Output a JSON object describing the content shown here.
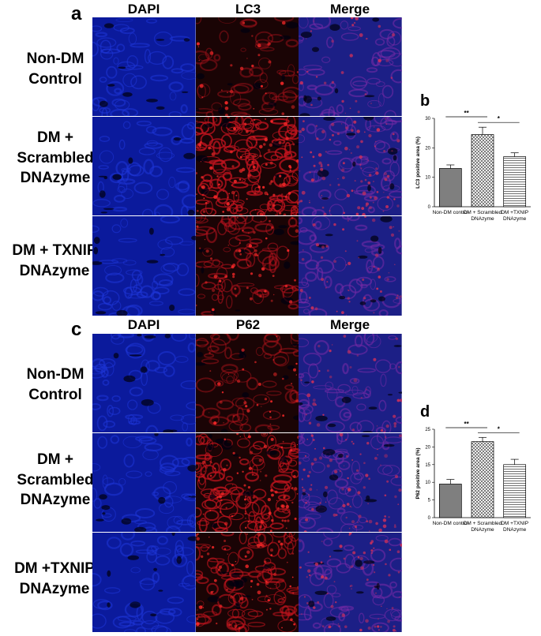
{
  "figure": {
    "panel_a": {
      "letter": "a",
      "columns": [
        "DAPI",
        "LC3",
        "Merge"
      ],
      "rows": [
        {
          "label_lines": [
            "Non-DM",
            "Control"
          ]
        },
        {
          "label_lines": [
            "DM +",
            "Scrambled",
            "DNAzyme"
          ]
        },
        {
          "label_lines": [
            "DM + TXNIP",
            "DNAzyme"
          ]
        }
      ]
    },
    "panel_c": {
      "letter": "c",
      "columns": [
        "DAPI",
        "P62",
        "Merge"
      ],
      "rows": [
        {
          "label_lines": [
            "Non-DM",
            "Control"
          ]
        },
        {
          "label_lines": [
            "DM  +",
            "Scrambled",
            "DNAzyme"
          ]
        },
        {
          "label_lines": [
            "DM +TXNIP",
            "DNAzyme"
          ]
        }
      ]
    }
  },
  "chart_data": [
    {
      "panel": "b",
      "type": "bar",
      "categories": [
        "Non-DM control",
        "DM + Scrambled\nDNAzyme",
        "DM +TXNIP\nDNAzyme"
      ],
      "values": [
        13,
        24.5,
        17
      ],
      "errors": [
        1.2,
        2.5,
        1.3
      ],
      "ylabel": "LC3 positive area (%)",
      "ylim": [
        0,
        30
      ],
      "yticks": [
        0,
        10,
        20,
        30
      ],
      "bar_styles": [
        "solid-gray",
        "crosshatch",
        "horizontal-lines"
      ],
      "significance": [
        {
          "from": 0,
          "to": 1,
          "label": "**"
        },
        {
          "from": 1,
          "to": 2,
          "label": "*"
        }
      ]
    },
    {
      "panel": "d",
      "type": "bar",
      "categories": [
        "Non-DM control",
        "DM + Scrambled\nDNAzyme",
        "DM +TXNIP\nDNAzyme"
      ],
      "values": [
        9.5,
        21.5,
        15
      ],
      "errors": [
        1.3,
        1.2,
        1.5
      ],
      "ylabel": "P62 positive area (%)",
      "ylim": [
        0,
        25
      ],
      "yticks": [
        0,
        5,
        10,
        15,
        20,
        25
      ],
      "bar_styles": [
        "solid-gray",
        "crosshatch",
        "horizontal-lines"
      ],
      "significance": [
        {
          "from": 0,
          "to": 1,
          "label": "**"
        },
        {
          "from": 1,
          "to": 2,
          "label": "*"
        }
      ]
    }
  ],
  "colors": {
    "dapi": "#0a1fb4",
    "red_stain": "#c0141e",
    "merge_blue": "#2a2a9a",
    "bar_gray": "#7f7f7f"
  }
}
